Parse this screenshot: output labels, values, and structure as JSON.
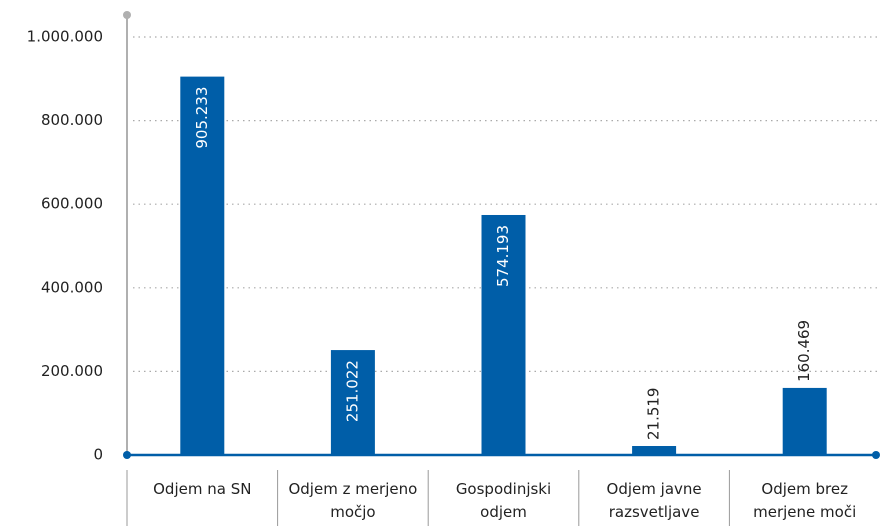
{
  "chart_data": {
    "type": "bar",
    "categories": [
      "Odjem na SN",
      "Odjem z merjeno močjo",
      "Gospodinjski odjem",
      "Odjem javne razsvetljave",
      "Odjem brez merjene moči"
    ],
    "values": [
      905233,
      251022,
      574193,
      21519,
      160469
    ],
    "value_labels": [
      "905.233",
      "251.022",
      "574.193",
      "21.519",
      "160.469"
    ],
    "color": "#005ea8",
    "ylim": [
      0,
      1000000
    ],
    "yticks": [
      0,
      {
        "value": 200000,
        "label": "200.000"
      },
      {
        "value": 400000,
        "label": "400.000"
      },
      {
        "value": 600000,
        "label": "600.000"
      },
      {
        "value": 800000,
        "label": "800.000"
      },
      {
        "value": 1000000,
        "label": "1.000.000"
      }
    ],
    "grid": true
  }
}
